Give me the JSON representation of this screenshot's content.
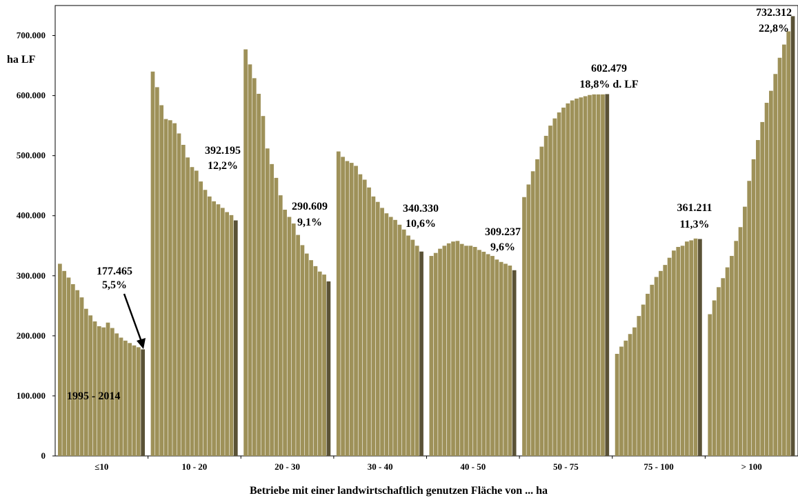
{
  "chart_data": {
    "type": "bar",
    "ylabel": "ha LF",
    "xlabel": "Betriebe mit einer landwirtschaftlich genutzen Fläche von ... ha",
    "ylim": [
      0,
      750000
    ],
    "yticks": [
      0,
      100000,
      200000,
      300000,
      400000,
      500000,
      600000,
      700000
    ],
    "ytick_labels": [
      "0",
      "100.000",
      "200.000",
      "300.000",
      "400.000",
      "500.000",
      "600.000",
      "700.000"
    ],
    "period_label": "1995 - 2014",
    "grid": false,
    "colors": {
      "bar": "#9e9159",
      "last_bar": "#5a5236",
      "frame": "#000000"
    },
    "groups": [
      {
        "category": "≤10",
        "values": [
          320000,
          308000,
          297000,
          286000,
          276000,
          264000,
          245000,
          234000,
          224000,
          216000,
          214000,
          222000,
          213000,
          204000,
          197000,
          192000,
          188000,
          184000,
          181000,
          177465
        ],
        "label_value": "177.465",
        "label_share": "5,5%"
      },
      {
        "category": "10 - 20",
        "values": [
          640000,
          614000,
          584000,
          561000,
          559000,
          554000,
          537000,
          518000,
          497000,
          481000,
          475000,
          457000,
          443000,
          432000,
          424000,
          419000,
          413000,
          406000,
          401000,
          392195
        ],
        "label_value": "392.195",
        "label_share": "12,2%"
      },
      {
        "category": "20 - 30",
        "values": [
          677000,
          652000,
          629000,
          603000,
          566000,
          512000,
          486000,
          463000,
          434000,
          410000,
          398000,
          387000,
          368000,
          351000,
          337000,
          326000,
          316000,
          307000,
          302000,
          290609
        ],
        "label_value": "290.609",
        "label_share": "9,1%"
      },
      {
        "category": "30 - 40",
        "values": [
          507000,
          498000,
          491000,
          488000,
          483000,
          469000,
          460000,
          447000,
          432000,
          423000,
          413000,
          404000,
          398000,
          393000,
          385000,
          377000,
          367000,
          360000,
          350000,
          340330
        ],
        "label_value": "340.330",
        "label_share": "10,6%"
      },
      {
        "category": "40 - 50",
        "values": [
          333000,
          338000,
          345000,
          350000,
          354000,
          357000,
          358000,
          353000,
          350000,
          350000,
          348000,
          343000,
          340000,
          336000,
          333000,
          327000,
          323000,
          320000,
          317000,
          309237
        ],
        "label_value": "309.237",
        "label_share": "9,6%"
      },
      {
        "category": "50 - 75",
        "values": [
          431000,
          452000,
          474000,
          494000,
          515000,
          533000,
          550000,
          562000,
          572000,
          580000,
          587000,
          592000,
          595000,
          597000,
          599000,
          601000,
          602000,
          602000,
          602000,
          602479
        ],
        "label_value": "602.479",
        "label_share": "18,8% d. LF"
      },
      {
        "category": "75 - 100",
        "values": [
          170000,
          182000,
          192000,
          203000,
          214000,
          233000,
          252000,
          270000,
          285000,
          298000,
          308000,
          318000,
          330000,
          342000,
          348000,
          350000,
          357000,
          359000,
          362000,
          361211
        ],
        "label_value": "361.211",
        "label_share": "11,3%"
      },
      {
        "category": "> 100",
        "values": [
          236000,
          259000,
          281000,
          296000,
          314000,
          333000,
          358000,
          381000,
          415000,
          458000,
          494000,
          526000,
          556000,
          588000,
          608000,
          636000,
          663000,
          685000,
          707000,
          732312
        ],
        "label_value": "732.312",
        "label_share": "22,8%"
      }
    ]
  }
}
